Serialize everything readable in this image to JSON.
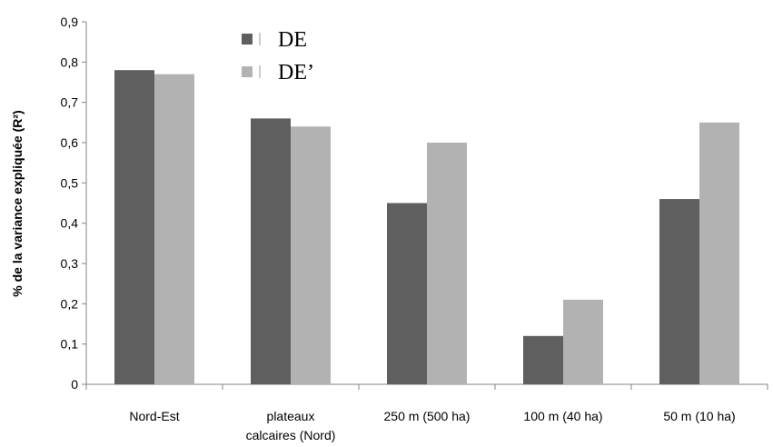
{
  "chart_data": {
    "type": "bar",
    "title": "",
    "xlabel": "",
    "ylabel": "% de la variance expliquée (R²)",
    "ylim": [
      0,
      0.9
    ],
    "yticks": [
      "0",
      "0,1",
      "0,2",
      "0,3",
      "0,4",
      "0,5",
      "0,6",
      "0,7",
      "0,8",
      "0,9"
    ],
    "categories": [
      [
        "Nord-Est"
      ],
      [
        "plateaux",
        "calcaires (Nord)"
      ],
      [
        "250 m (500 ha)"
      ],
      [
        "100 m (40 ha)"
      ],
      [
        "50 m (10 ha)"
      ]
    ],
    "series": [
      {
        "name": "DE",
        "color": "#5f5f5f",
        "values": [
          0.78,
          0.66,
          0.45,
          0.12,
          0.46
        ]
      },
      {
        "name": "DE’",
        "color": "#b2b2b2",
        "values": [
          0.77,
          0.64,
          0.6,
          0.21,
          0.65
        ]
      }
    ],
    "grid": false,
    "legend": "top-left"
  }
}
